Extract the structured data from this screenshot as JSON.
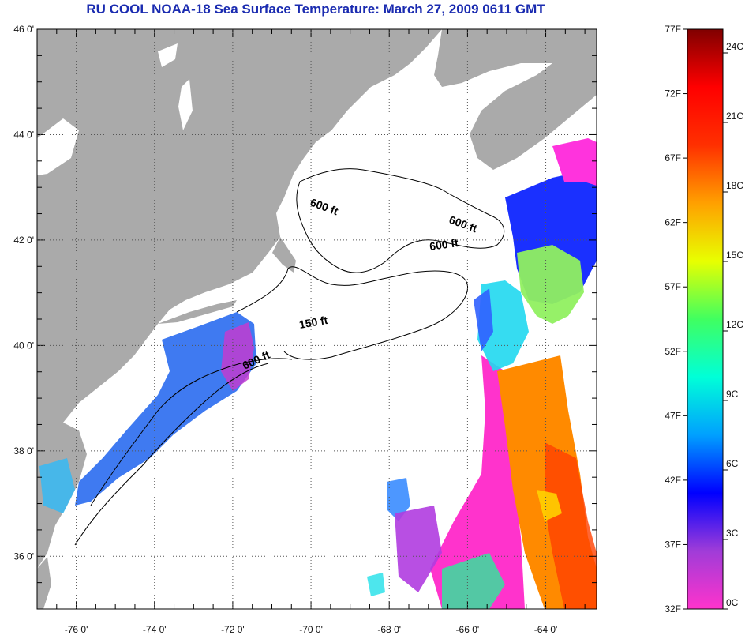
{
  "title": "RU COOL  NOAA-18  Sea Surface Temperature:  March 27, 2009 0611 GMT",
  "map": {
    "lon_range": [
      -77.0,
      -62.7
    ],
    "lat_range": [
      35.0,
      46.0
    ],
    "lon_ticks": [
      {
        "value": -76,
        "label": "-76 0'"
      },
      {
        "value": -74,
        "label": "-74 0'"
      },
      {
        "value": -72,
        "label": "-72 0'"
      },
      {
        "value": -70,
        "label": "-70 0'"
      },
      {
        "value": -68,
        "label": "-68 0'"
      },
      {
        "value": -66,
        "label": "-66 0'"
      },
      {
        "value": -64,
        "label": "-64 0'"
      }
    ],
    "lat_ticks": [
      {
        "value": 46,
        "label": "46 0'"
      },
      {
        "value": 44,
        "label": "44 0'"
      },
      {
        "value": 42,
        "label": "42 0'"
      },
      {
        "value": 40,
        "label": "40 0'"
      },
      {
        "value": 38,
        "label": "38 0'"
      },
      {
        "value": 36,
        "label": "36 0'"
      }
    ],
    "contour_labels": [
      "600 ft",
      "600 ft",
      "600 ft",
      "150 ft",
      "600 ft"
    ],
    "land_color": "#aaaaaa",
    "ocean_color": "#ffffff"
  },
  "colorbar": {
    "colors": [
      "#ff33cc",
      "#a03cd8",
      "#0000ff",
      "#00a0ff",
      "#00ffd8",
      "#40ff60",
      "#e8ff00",
      "#ffa000",
      "#ff3000",
      "#ff0000",
      "#800000"
    ],
    "fahrenheit_labels": [
      "77F",
      "72F",
      "67F",
      "62F",
      "57F",
      "52F",
      "47F",
      "42F",
      "37F",
      "32F"
    ],
    "celsius_labels": [
      "24C",
      "21C",
      "18C",
      "15C",
      "12C",
      "9C",
      "6C",
      "3C",
      "0C"
    ]
  }
}
